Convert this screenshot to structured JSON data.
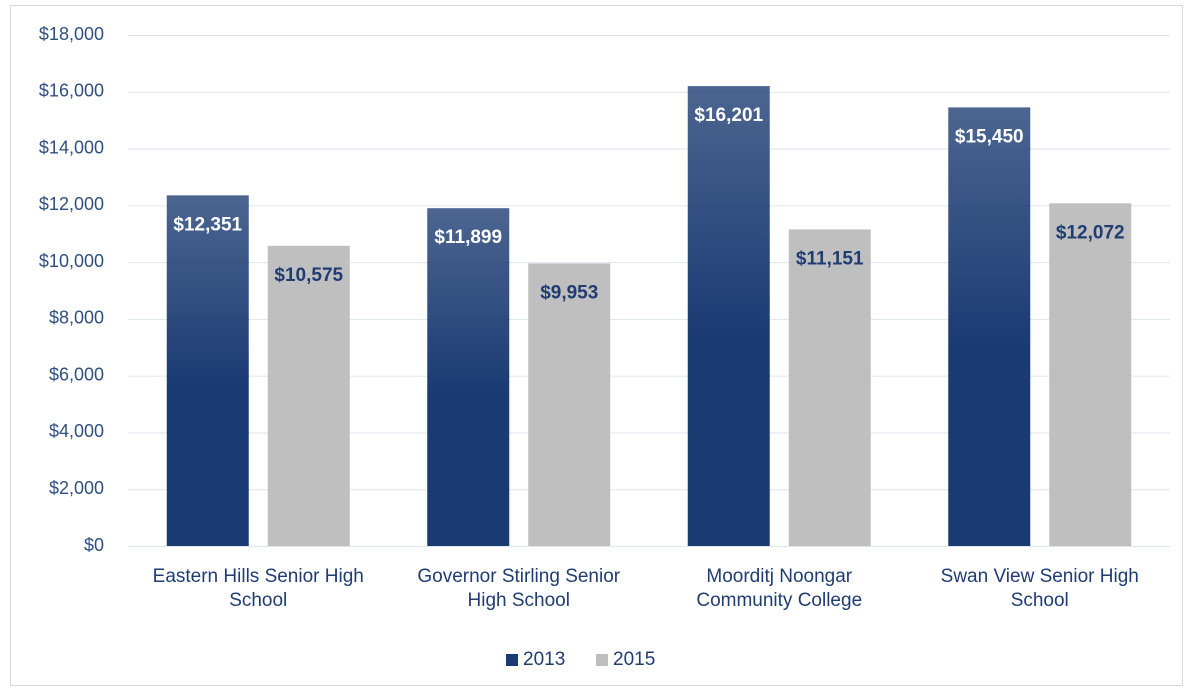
{
  "chart_data": {
    "type": "bar",
    "categories": [
      "Eastern Hills Senior High School",
      "Governor Stirling Senior High School",
      "Moorditj Noongar Community College",
      "Swan View Senior High School"
    ],
    "series": [
      {
        "name": "2013",
        "color": "#1a3a72",
        "values": [
          12351,
          11899,
          16201,
          15450
        ],
        "value_labels": [
          "$12,351",
          "$11,899",
          "$16,201",
          "$15,450"
        ],
        "label_color": "#ffffff"
      },
      {
        "name": "2015",
        "color": "#bfbfbf",
        "values": [
          10575,
          9953,
          11151,
          12072
        ],
        "value_labels": [
          "$10,575",
          "$9,953",
          "$11,151",
          "$12,072"
        ],
        "label_color": "#1f3c73"
      }
    ],
    "ylim": [
      0,
      18000
    ],
    "yticks": [
      {
        "value": 0,
        "label": "$0"
      },
      {
        "value": 2000,
        "label": "$2,000"
      },
      {
        "value": 4000,
        "label": "$4,000"
      },
      {
        "value": 6000,
        "label": "$6,000"
      },
      {
        "value": 8000,
        "label": "$8,000"
      },
      {
        "value": 10000,
        "label": "$10,000"
      },
      {
        "value": 12000,
        "label": "$12,000"
      },
      {
        "value": 14000,
        "label": "$14,000"
      },
      {
        "value": 16000,
        "label": "$16,000"
      },
      {
        "value": 18000,
        "label": "$18,000"
      }
    ],
    "grid": true,
    "legend": "bottom"
  }
}
